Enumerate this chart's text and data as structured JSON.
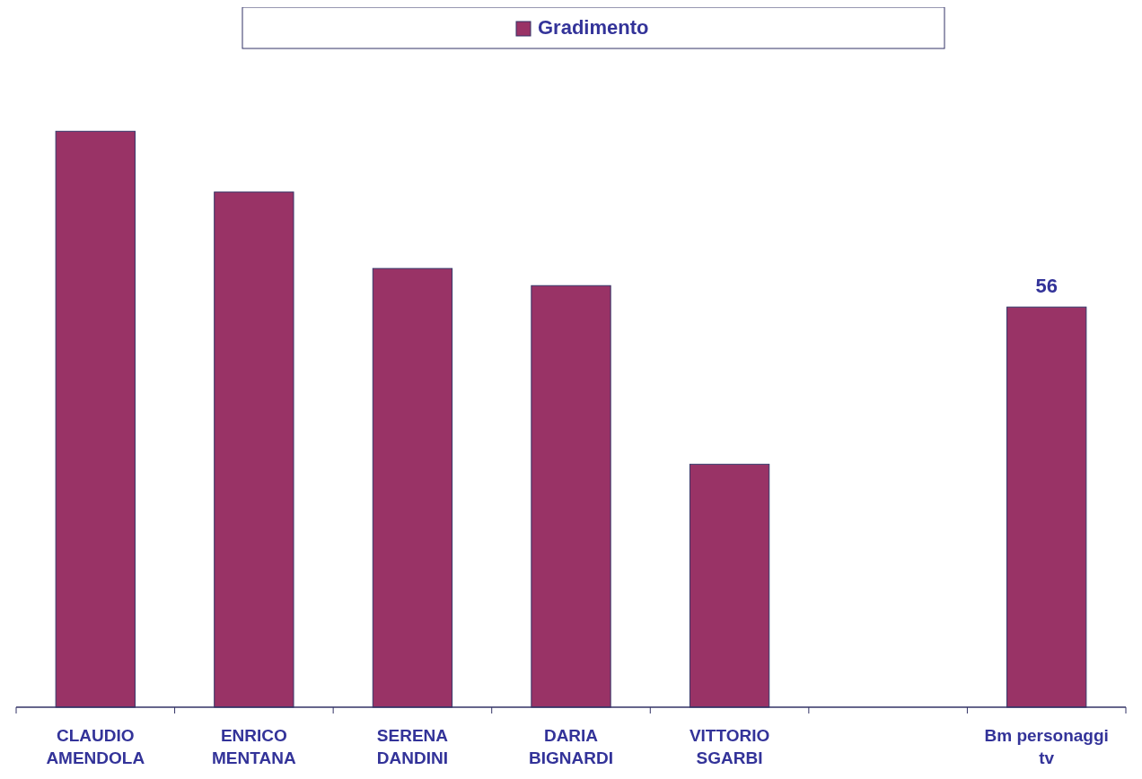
{
  "chart_data": {
    "type": "bar",
    "categories": [
      "CLAUDIO AMENDOLA",
      "ENRICO MENTANA",
      "SERENA DANDINI",
      "DARIA BIGNARDI",
      "VITTORIO SGARBI",
      null,
      "Bm personaggi tv"
    ],
    "series": [
      {
        "name": "Gradimento",
        "color": "#993366",
        "values": [
          80.6,
          72.1,
          61.4,
          59.0,
          34.0,
          null,
          56
        ],
        "value_labels": [
          null,
          null,
          null,
          null,
          null,
          null,
          "56"
        ]
      }
    ],
    "legend": "top"
  }
}
